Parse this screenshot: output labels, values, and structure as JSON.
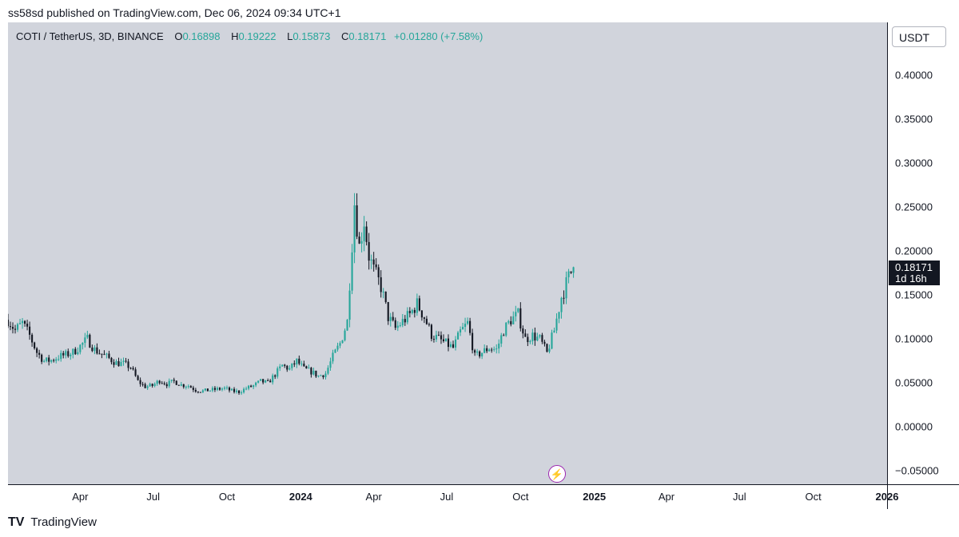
{
  "publisher_line": "ss58sd published on TradingView.com, Dec 06, 2024 09:34 UTC+1",
  "legend": {
    "symbol": "COTI / TetherUS, 3D, BINANCE",
    "o_label": "O",
    "o_value": "0.16898",
    "h_label": "H",
    "h_value": "0.19222",
    "l_label": "L",
    "l_value": "0.15873",
    "c_label": "C",
    "c_value": "0.18171",
    "change": "+0.01280 (+7.58%)"
  },
  "unit": "USDT",
  "last_price": {
    "value": "0.18171",
    "countdown": "1d 16h"
  },
  "footer": {
    "logo": "TV",
    "brand": "TradingView"
  },
  "colors": {
    "up": "#26a69a",
    "down": "#131722",
    "background": "#d1d4dc",
    "event_icon": "#9c27b0"
  },
  "event_icon": "lightning-icon",
  "chart_data": {
    "type": "candlestick",
    "interval": "3D",
    "title": "",
    "ylim": [
      -0.065,
      0.46
    ],
    "y_ticks": [
      "0.40000",
      "0.35000",
      "0.30000",
      "0.25000",
      "0.20000",
      "0.15000",
      "0.10000",
      "0.05000",
      "0.00000",
      "−0.05000"
    ],
    "y_tick_values": [
      0.4,
      0.35,
      0.3,
      0.25,
      0.2,
      0.15,
      0.1,
      0.05,
      0.0,
      -0.05
    ],
    "x_range": [
      "2023-01-01",
      "2026-01-01"
    ],
    "x_ticks": [
      {
        "label": "Apr",
        "date": "2023-04-01"
      },
      {
        "label": "Jul",
        "date": "2023-07-01"
      },
      {
        "label": "Oct",
        "date": "2023-10-01"
      },
      {
        "label": "2024",
        "date": "2024-01-01",
        "major": true
      },
      {
        "label": "Apr",
        "date": "2024-04-01"
      },
      {
        "label": "Jul",
        "date": "2024-07-01"
      },
      {
        "label": "Oct",
        "date": "2024-10-01"
      },
      {
        "label": "2025",
        "date": "2025-01-01",
        "major": true
      },
      {
        "label": "Apr",
        "date": "2025-04-01"
      },
      {
        "label": "Jul",
        "date": "2025-07-01"
      },
      {
        "label": "Oct",
        "date": "2025-10-01"
      },
      {
        "label": "2026",
        "date": "2026-01-01",
        "major": true
      }
    ],
    "close_series": [
      [
        "2023-01-01",
        0.122
      ],
      [
        "2023-01-10",
        0.11
      ],
      [
        "2023-01-19",
        0.118
      ],
      [
        "2023-01-28",
        0.104
      ],
      [
        "2023-02-06",
        0.085
      ],
      [
        "2023-02-15",
        0.075
      ],
      [
        "2023-02-24",
        0.076
      ],
      [
        "2023-03-05",
        0.08
      ],
      [
        "2023-03-14",
        0.082
      ],
      [
        "2023-03-23",
        0.085
      ],
      [
        "2023-04-01",
        0.092
      ],
      [
        "2023-04-10",
        0.1
      ],
      [
        "2023-04-19",
        0.088
      ],
      [
        "2023-04-28",
        0.083
      ],
      [
        "2023-05-07",
        0.078
      ],
      [
        "2023-05-16",
        0.073
      ],
      [
        "2023-05-25",
        0.072
      ],
      [
        "2023-06-03",
        0.068
      ],
      [
        "2023-06-12",
        0.052
      ],
      [
        "2023-06-21",
        0.046
      ],
      [
        "2023-06-30",
        0.047
      ],
      [
        "2023-07-09",
        0.053
      ],
      [
        "2023-07-18",
        0.049
      ],
      [
        "2023-07-27",
        0.052
      ],
      [
        "2023-08-05",
        0.048
      ],
      [
        "2023-08-14",
        0.047
      ],
      [
        "2023-08-23",
        0.042
      ],
      [
        "2023-09-01",
        0.041
      ],
      [
        "2023-09-10",
        0.042
      ],
      [
        "2023-09-19",
        0.043
      ],
      [
        "2023-09-28",
        0.044
      ],
      [
        "2023-10-07",
        0.041
      ],
      [
        "2023-10-16",
        0.04
      ],
      [
        "2023-10-25",
        0.044
      ],
      [
        "2023-11-03",
        0.047
      ],
      [
        "2023-11-12",
        0.052
      ],
      [
        "2023-11-21",
        0.05
      ],
      [
        "2023-11-30",
        0.06
      ],
      [
        "2023-12-09",
        0.07
      ],
      [
        "2023-12-18",
        0.066
      ],
      [
        "2023-12-27",
        0.075
      ],
      [
        "2024-01-05",
        0.066
      ],
      [
        "2024-01-14",
        0.063
      ],
      [
        "2024-01-23",
        0.058
      ],
      [
        "2024-02-01",
        0.061
      ],
      [
        "2024-02-10",
        0.08
      ],
      [
        "2024-02-19",
        0.095
      ],
      [
        "2024-02-28",
        0.12
      ],
      [
        "2024-03-08",
        0.255
      ],
      [
        "2024-03-14",
        0.205
      ],
      [
        "2024-03-20",
        0.235
      ],
      [
        "2024-03-26",
        0.195
      ],
      [
        "2024-04-01",
        0.178
      ],
      [
        "2024-04-10",
        0.16
      ],
      [
        "2024-04-19",
        0.125
      ],
      [
        "2024-04-28",
        0.112
      ],
      [
        "2024-05-07",
        0.12
      ],
      [
        "2024-05-16",
        0.128
      ],
      [
        "2024-05-25",
        0.14
      ],
      [
        "2024-06-03",
        0.125
      ],
      [
        "2024-06-12",
        0.105
      ],
      [
        "2024-06-21",
        0.1
      ],
      [
        "2024-06-30",
        0.095
      ],
      [
        "2024-07-09",
        0.09
      ],
      [
        "2024-07-18",
        0.108
      ],
      [
        "2024-07-27",
        0.118
      ],
      [
        "2024-08-05",
        0.08
      ],
      [
        "2024-08-14",
        0.085
      ],
      [
        "2024-08-23",
        0.09
      ],
      [
        "2024-09-01",
        0.088
      ],
      [
        "2024-09-10",
        0.11
      ],
      [
        "2024-09-19",
        0.122
      ],
      [
        "2024-09-28",
        0.128
      ],
      [
        "2024-10-07",
        0.1
      ],
      [
        "2024-10-16",
        0.104
      ],
      [
        "2024-10-25",
        0.1
      ],
      [
        "2024-11-03",
        0.084
      ],
      [
        "2024-11-12",
        0.11
      ],
      [
        "2024-11-21",
        0.148
      ],
      [
        "2024-11-30",
        0.17
      ],
      [
        "2024-12-06",
        0.182
      ]
    ],
    "last_price": 0.18171,
    "grid": false,
    "legend": "top-left"
  }
}
